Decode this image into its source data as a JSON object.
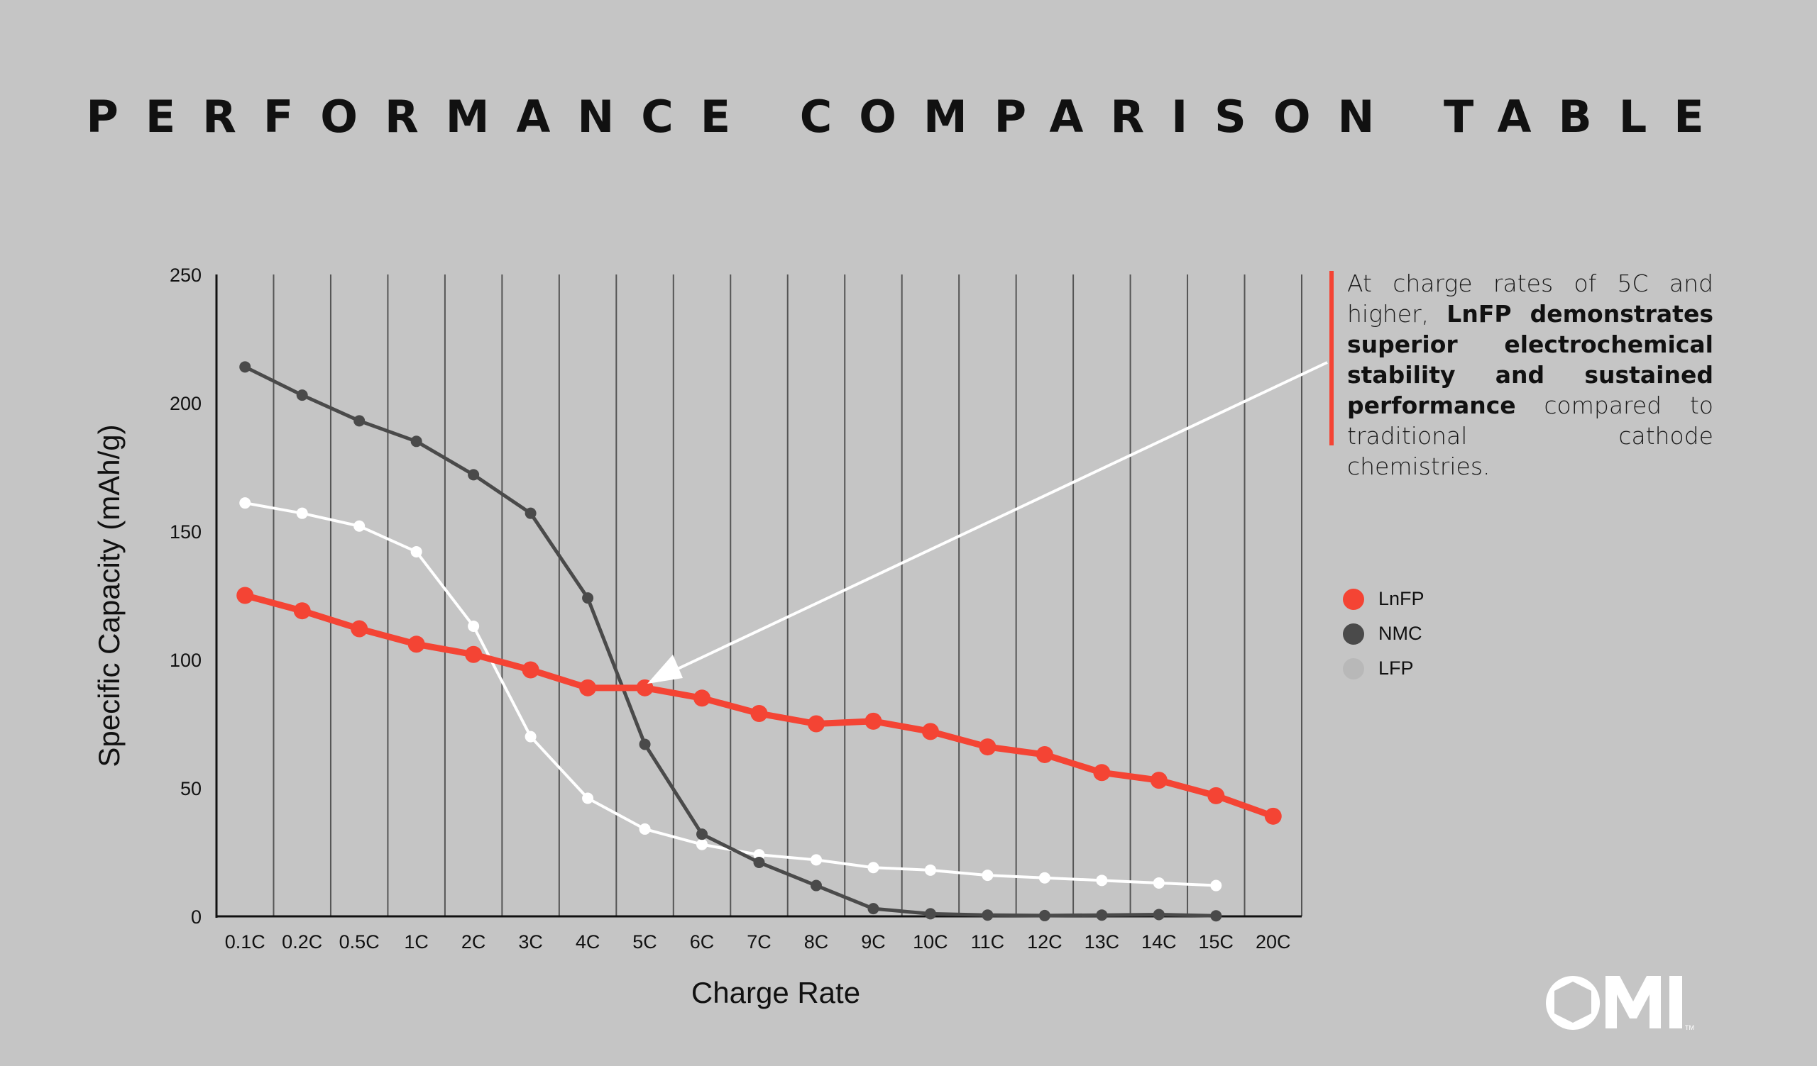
{
  "title": "PERFORMANCE COMPARISON TABLE",
  "annotation": {
    "lead": "At charge rates of 5C and higher,",
    "bold": "LnFP demonstrates superior electrochemical stability and sustained performance",
    "tail": "compared to traditional cathode chemistries."
  },
  "logo": {
    "text": "OMI",
    "tm": "TM"
  },
  "chart_data": {
    "type": "line",
    "title": "PERFORMANCE COMPARISON TABLE",
    "xlabel": "Charge Rate",
    "ylabel": "Specific Capacity (mAh/g)",
    "ylim": [
      0,
      250
    ],
    "yticks": [
      0,
      50,
      100,
      150,
      200,
      250
    ],
    "grid": "vertical",
    "legend_position": "right",
    "categories": [
      "0.1C",
      "0.2C",
      "0.5C",
      "1C",
      "2C",
      "3C",
      "4C",
      "5C",
      "6C",
      "7C",
      "8C",
      "9C",
      "10C",
      "11C",
      "12C",
      "13C",
      "14C",
      "15C",
      "20C"
    ],
    "series": [
      {
        "name": "LnFP",
        "color": "#f44434",
        "values": [
          125,
          119,
          112,
          106,
          102,
          96,
          89,
          89,
          85,
          79,
          75,
          76,
          72,
          66,
          63,
          56,
          53,
          47,
          39
        ]
      },
      {
        "name": "NMC",
        "color": "#4a4a4a",
        "values": [
          214,
          203,
          193,
          185,
          172,
          157,
          124,
          67,
          32,
          21,
          12,
          3,
          1,
          0.5,
          0.3,
          0.5,
          0.7,
          0.2,
          null
        ]
      },
      {
        "name": "LFP",
        "color": "#ffffff",
        "legend_color": "#b8b8b8",
        "values": [
          161,
          157,
          152,
          142,
          113,
          70,
          46,
          34,
          28,
          24,
          22,
          19,
          18,
          16,
          15,
          14,
          13,
          12,
          null
        ]
      }
    ],
    "annotation_arrow_target": "5C"
  }
}
